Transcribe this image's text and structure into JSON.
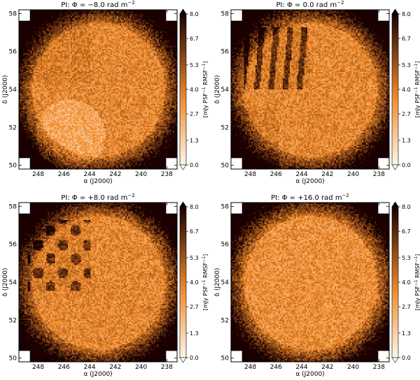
{
  "chart_data": [
    {
      "type": "heatmap",
      "title": "PI: Φ = −8.0 rad m",
      "title_superscript": "−2",
      "xlabel": "α (J2000)",
      "ylabel": "δ (J2000)",
      "xticks": [
        "248",
        "246",
        "244",
        "242",
        "240",
        "238"
      ],
      "yticks": [
        "50",
        "52",
        "54",
        "56",
        "58"
      ],
      "xlim": [
        249.5,
        237.2
      ],
      "ylim": [
        49.8,
        58.2
      ],
      "colorbar": {
        "label_parts": [
          "[mJy PSF",
          "−1",
          " RMSF",
          "−1",
          "]"
        ],
        "ticks": [
          "0.0",
          "1.3",
          "2.7",
          "4.0",
          "5.3",
          "6.7",
          "8.0"
        ],
        "range": [
          0.0,
          8.0
        ]
      },
      "features": "diffuse emission; brighter (low PI) patch lower-left"
    },
    {
      "type": "heatmap",
      "title": "PI: Φ = 0.0 rad m",
      "title_superscript": "−2",
      "xlabel": "α (J2000)",
      "ylabel": "δ (J2000)",
      "xticks": [
        "248",
        "246",
        "244",
        "242",
        "240",
        "238"
      ],
      "yticks": [
        "50",
        "52",
        "54",
        "56",
        "58"
      ],
      "xlim": [
        249.5,
        237.2
      ],
      "ylim": [
        49.8,
        58.2
      ],
      "colorbar": {
        "label_parts": [
          "[mJy PSF",
          "−1",
          " RMSF",
          "−1",
          "]"
        ],
        "ticks": [
          "0.0",
          "1.3",
          "2.7",
          "4.0",
          "5.3",
          "6.7",
          "8.0"
        ],
        "range": [
          0.0,
          8.0
        ]
      },
      "features": "dark striated structures upper-left"
    },
    {
      "type": "heatmap",
      "title": "PI: Φ = +8.0 rad m",
      "title_superscript": "−2",
      "xlabel": "α (J2000)",
      "ylabel": "δ (J2000)",
      "xticks": [
        "248",
        "246",
        "244",
        "242",
        "240",
        "238"
      ],
      "yticks": [
        "50",
        "52",
        "54",
        "56",
        "58"
      ],
      "xlim": [
        249.5,
        237.2
      ],
      "ylim": [
        49.8,
        58.2
      ],
      "colorbar": {
        "label_parts": [
          "[mJy PSF",
          "−1",
          " RMSF",
          "−1",
          "]"
        ],
        "ticks": [
          "0.0",
          "1.3",
          "2.7",
          "4.0",
          "5.3",
          "6.7",
          "8.0"
        ],
        "range": [
          0.0,
          8.0
        ]
      },
      "features": "dark blobs left side"
    },
    {
      "type": "heatmap",
      "title": "PI: Φ = +16.0 rad m",
      "title_superscript": "−2",
      "xlabel": "α (J2000)",
      "ylabel": "δ (J2000)",
      "xticks": [
        "248",
        "246",
        "244",
        "242",
        "240",
        "238"
      ],
      "yticks": [
        "50",
        "52",
        "54",
        "56",
        "58"
      ],
      "xlim": [
        249.5,
        237.2
      ],
      "ylim": [
        49.8,
        58.2
      ],
      "colorbar": {
        "label_parts": [
          "[mJy PSF",
          "−1",
          " RMSF",
          "−1",
          "]"
        ],
        "ticks": [
          "0.0",
          "1.3",
          "2.7",
          "4.0",
          "5.3",
          "6.7",
          "8.0"
        ],
        "range": [
          0.0,
          8.0
        ]
      },
      "features": "mostly uniform noise"
    }
  ],
  "colors": {
    "cmap_low": "#fff6e8",
    "cmap_mid": "#f08a2a",
    "cmap_high": "#1a0000",
    "edge_dark": "#2a0500"
  }
}
